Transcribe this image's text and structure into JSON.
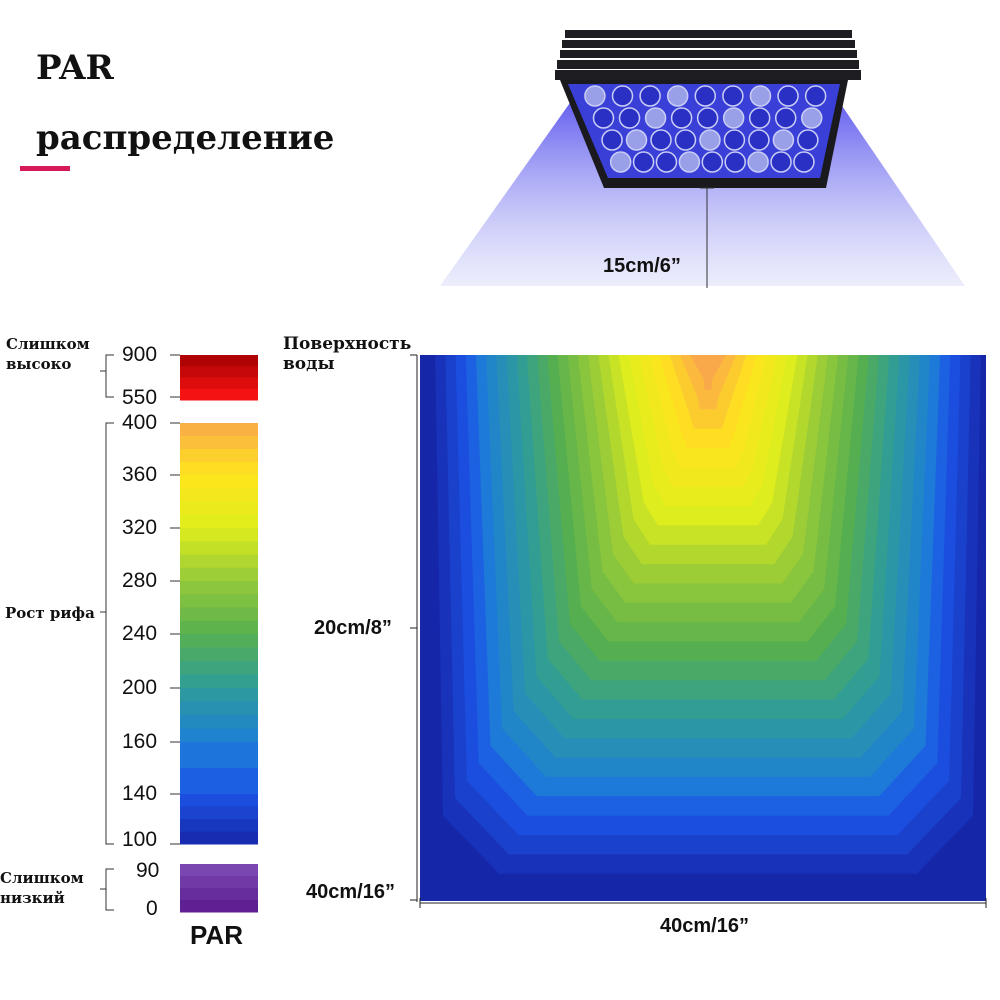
{
  "header": {
    "title_line1": "PAR",
    "title_line2": "распределение",
    "accent_color": "#d6195b"
  },
  "fixture": {
    "icon": "led-light-fixture-icon",
    "beam_color": "#6f6cf0",
    "distance_label": "15cm/6”"
  },
  "tank": {
    "surface_label_line1": "Поверхность",
    "surface_label_line2": "воды",
    "depth_mid_label": "20cm/8”",
    "depth_bottom_label": "40cm/16”",
    "width_label": "40cm/16”"
  },
  "legend": {
    "caption": "PAR",
    "groups": [
      {
        "name_line1": "Слишком",
        "name_line2": "высоко",
        "ticks": [
          "900",
          "550"
        ]
      },
      {
        "name_line1": "Рост рифа",
        "name_line2": "",
        "ticks": [
          "400",
          "360",
          "320",
          "280",
          "240",
          "200",
          "160",
          "140",
          "100"
        ]
      },
      {
        "name_line1": "Слишком",
        "name_line2": "низкий",
        "ticks": [
          "90",
          "0"
        ]
      }
    ]
  },
  "chart_data": {
    "type": "heatmap",
    "title": "PAR распределение",
    "xlabel": "40cm/16”",
    "ylabel_ticks": [
      "Поверхность воды",
      "20cm/8”",
      "40cm/16”"
    ],
    "x_range_cm": [
      0,
      40
    ],
    "depth_range_cm": [
      0,
      40
    ],
    "fixture_height_cm": 15,
    "peak_par_at_surface": 400,
    "min_par_at_edges": 100,
    "colorscale": [
      {
        "par": 0,
        "color": "#5a1a8f"
      },
      {
        "par": 90,
        "color": "#7e4cb3"
      },
      {
        "par": 100,
        "color": "#1626a8"
      },
      {
        "par": 140,
        "color": "#1c54e6"
      },
      {
        "par": 160,
        "color": "#1d7fd6"
      },
      {
        "par": 200,
        "color": "#2e9c9a"
      },
      {
        "par": 240,
        "color": "#57b04e"
      },
      {
        "par": 280,
        "color": "#93c93a"
      },
      {
        "par": 320,
        "color": "#dfee1c"
      },
      {
        "par": 360,
        "color": "#ffe51c"
      },
      {
        "par": 400,
        "color": "#f9a94a"
      },
      {
        "par": 550,
        "color": "#ff1414"
      },
      {
        "par": 900,
        "color": "#a50000"
      }
    ]
  }
}
